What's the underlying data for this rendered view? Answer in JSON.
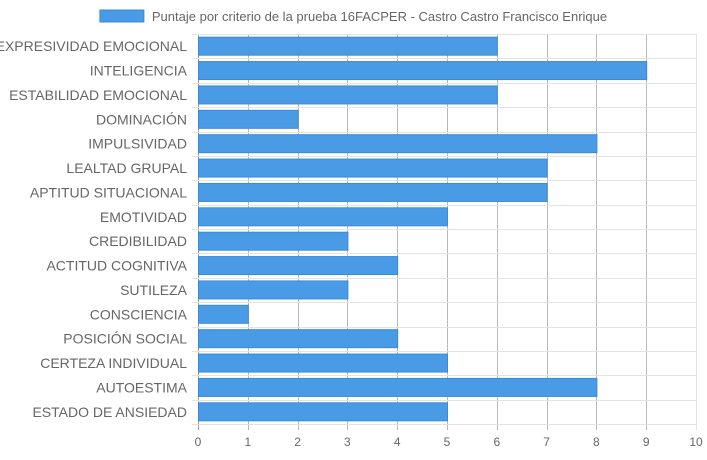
{
  "chart_data": {
    "type": "bar",
    "orientation": "horizontal",
    "legend_position": "top",
    "grid": true,
    "xlim": [
      0,
      10
    ],
    "x_ticks": [
      0,
      1,
      2,
      3,
      4,
      5,
      6,
      7,
      8,
      9,
      10
    ],
    "categories": [
      "EXPRESIVIDAD EMOCIONAL",
      "INTELIGENCIA",
      "ESTABILIDAD EMOCIONAL",
      "DOMINACIÓN",
      "IMPULSIVIDAD",
      "LEALTAD GRUPAL",
      "APTITUD SITUACIONAL",
      "EMOTIVIDAD",
      "CREDIBILIDAD",
      "ACTITUD COGNITIVA",
      "SUTILEZA",
      "CONSCIENCIA",
      "POSICIÓN SOCIAL",
      "CERTEZA INDIVIDUAL",
      "AUTOESTIMA",
      "ESTADO DE ANSIEDAD"
    ],
    "series": [
      {
        "name": "Puntaje por criterio de la prueba 16FACPER - Castro Castro Francisco Enrique",
        "values": [
          6,
          9,
          6,
          2,
          8,
          7,
          7,
          5,
          3,
          4,
          3,
          1,
          4,
          5,
          8,
          5
        ]
      }
    ],
    "colors": {
      "bar_fill": "#4a9be6",
      "bar_stroke": "#3a8ad8",
      "grid": "#e3e3e3",
      "grid_strong": "#a0a0a0",
      "text": "#666666"
    }
  }
}
